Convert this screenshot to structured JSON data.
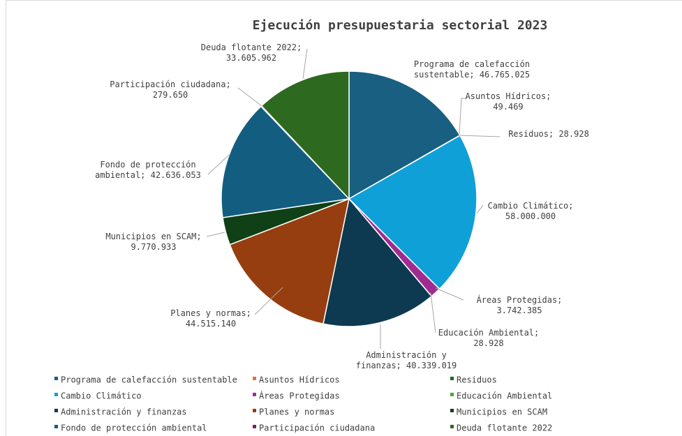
{
  "chart_data": {
    "type": "pie",
    "title": "Ejecución presupuestaria sectorial 2023",
    "legend_position": "bottom",
    "slices": [
      {
        "name": "Programa de calefacción sustentable",
        "value": 46765025,
        "label_lines": [
          "Programa de calefacción",
          "sustentable;  46.765.025"
        ],
        "color": "#185f82"
      },
      {
        "name": "Asuntos Hídricos",
        "value": 49469,
        "label_lines": [
          "Asuntos Hídricos;",
          "49.469"
        ],
        "color": "#e97132"
      },
      {
        "name": "Residuos",
        "value": 28928,
        "label_lines": [
          "Residuos;  28.928"
        ],
        "color": "#196b24"
      },
      {
        "name": "Cambio Climático",
        "value": 58000000,
        "label_lines": [
          "Cambio Climático;",
          "58.000.000"
        ],
        "color": "#10a0d8"
      },
      {
        "name": "Áreas Protegidas",
        "value": 3742385,
        "label_lines": [
          "Áreas Protegidas;",
          "3.742.385"
        ],
        "color": "#a02b93"
      },
      {
        "name": "Educación Ambiental",
        "value": 28928,
        "label_lines": [
          "Educación Ambiental;",
          "28.928"
        ],
        "color": "#4ea72e"
      },
      {
        "name": "Administración y finanzas",
        "value": 40339019,
        "label_lines": [
          "Administración y",
          "finanzas;  40.339.019"
        ],
        "color": "#0d3a50"
      },
      {
        "name": "Planes y normas",
        "value": 44515140,
        "label_lines": [
          "Planes y normas;",
          "44.515.140"
        ],
        "color": "#963e10"
      },
      {
        "name": "Municipios en SCAM",
        "value": 9770933,
        "label_lines": [
          "Municipios en SCAM;",
          "9.770.933"
        ],
        "color": "#0f4016"
      },
      {
        "name": "Fondo de protección ambiental",
        "value": 42636053,
        "label_lines": [
          "Fondo de protección",
          "ambiental;  42.636.053"
        ],
        "color": "#135e80"
      },
      {
        "name": "Participación ciudadana",
        "value": 279650,
        "label_lines": [
          "Participación ciudadana;",
          "279.650"
        ],
        "color": "#7c1f70"
      },
      {
        "name": "Deuda flotante 2022",
        "value": 33605962,
        "label_lines": [
          "Deuda flotante 2022;",
          "33.605.962"
        ],
        "color": "#2d6a1f"
      }
    ]
  }
}
